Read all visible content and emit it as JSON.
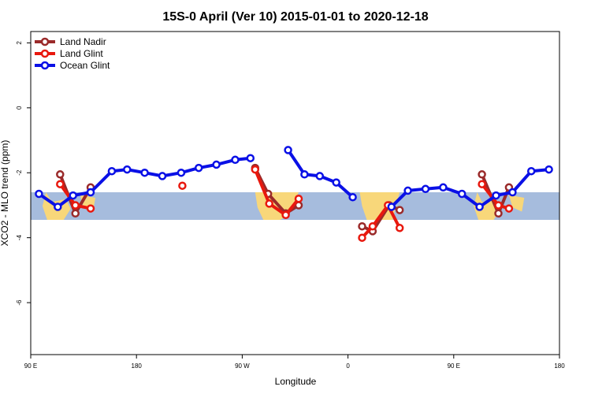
{
  "chart_data": {
    "type": "line",
    "title": "15S-0 April (Ver 10)   2015-01-01 to 2020-12-18",
    "xlabel": "Longitude",
    "ylabel": "XCO2 - MLO trend (ppm)",
    "xlim": [
      90,
      540
    ],
    "ylim": [
      -7.6,
      2.35
    ],
    "x_ticks": [
      {
        "value": 90,
        "label": "90 E"
      },
      {
        "value": 180,
        "label": "180"
      },
      {
        "value": 270,
        "label": "90 W"
      },
      {
        "value": 360,
        "label": "0"
      },
      {
        "value": 450,
        "label": "90 E"
      },
      {
        "value": 540,
        "label": "180"
      }
    ],
    "y_ticks": [
      {
        "value": 2,
        "label": "2"
      },
      {
        "value": 0,
        "label": "0"
      },
      {
        "value": -2,
        "label": "-2"
      },
      {
        "value": -4,
        "label": "-4"
      },
      {
        "value": -6,
        "label": "-6"
      }
    ],
    "band": {
      "ymin": -3.45,
      "ymax": -2.6,
      "color": "#a6bcdd"
    },
    "land_color": "#f8d77a",
    "legend_position": "top-left",
    "series": [
      {
        "name": "Land Nadir",
        "color": "#9a2a2a",
        "segments": [
          [
            [
              115,
              -2.05
            ],
            [
              128,
              -3.25
            ],
            [
              141,
              -2.45
            ]
          ],
          [
            [
              281,
              -1.85
            ],
            [
              292,
              -2.65
            ],
            [
              307,
              -3.25
            ],
            [
              318,
              -3.0
            ]
          ],
          [
            [
              372,
              -3.65
            ],
            [
              381,
              -3.8
            ],
            [
              395,
              -3.0
            ],
            [
              404,
              -3.15
            ]
          ],
          [
            [
              474,
              -2.05
            ],
            [
              488,
              -3.25
            ],
            [
              497,
              -2.45
            ]
          ]
        ]
      },
      {
        "name": "Land Glint",
        "color": "#e8180e",
        "segments": [
          [
            [
              115,
              -2.35
            ],
            [
              128,
              -3.0
            ],
            [
              141,
              -3.1
            ]
          ],
          [
            [
              219,
              -2.4
            ]
          ],
          [
            [
              281,
              -1.9
            ],
            [
              293,
              -2.95
            ],
            [
              307,
              -3.3
            ],
            [
              318,
              -2.8
            ]
          ],
          [
            [
              372,
              -4.0
            ],
            [
              381,
              -3.65
            ],
            [
              394,
              -3.0
            ],
            [
              404,
              -3.7
            ]
          ],
          [
            [
              474,
              -2.35
            ],
            [
              488,
              -3.0
            ],
            [
              497,
              -3.1
            ]
          ]
        ]
      },
      {
        "name": "Ocean Glint",
        "color": "#0a10e6",
        "segments": [
          [
            [
              97,
              -2.65
            ],
            [
              113,
              -3.05
            ],
            [
              126,
              -2.7
            ],
            [
              141,
              -2.6
            ],
            [
              159,
              -1.95
            ],
            [
              172,
              -1.9
            ],
            [
              187,
              -2.0
            ],
            [
              202,
              -2.1
            ],
            [
              218,
              -2.0
            ],
            [
              233,
              -1.85
            ],
            [
              248,
              -1.75
            ],
            [
              264,
              -1.6
            ],
            [
              277,
              -1.55
            ]
          ],
          [
            [
              309,
              -1.3
            ],
            [
              323,
              -2.05
            ],
            [
              336,
              -2.1
            ],
            [
              350,
              -2.3
            ],
            [
              364,
              -2.75
            ]
          ],
          [
            [
              397,
              -3.05
            ],
            [
              411,
              -2.55
            ],
            [
              426,
              -2.5
            ],
            [
              441,
              -2.45
            ],
            [
              457,
              -2.65
            ],
            [
              472,
              -3.05
            ],
            [
              486,
              -2.7
            ],
            [
              500,
              -2.6
            ],
            [
              516,
              -1.95
            ],
            [
              531,
              -1.9
            ]
          ]
        ]
      }
    ]
  }
}
